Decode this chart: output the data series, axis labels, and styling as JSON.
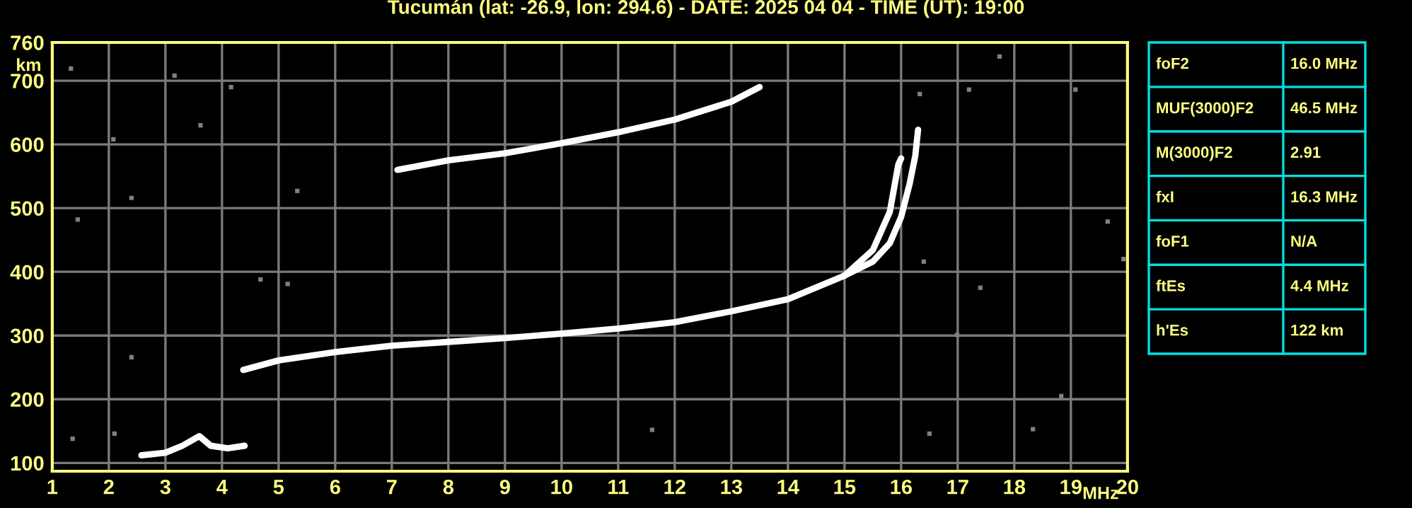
{
  "chart_data": {
    "type": "line",
    "title": "Tucumán (lat: -26.9, lon: 294.6) - DATE: 2025 04 04 - TIME (UT): 19:00",
    "xlabel": "MHz",
    "ylabel": "km",
    "xlim": [
      1,
      20
    ],
    "xticks": [
      1,
      2,
      3,
      4,
      5,
      6,
      7,
      8,
      9,
      10,
      11,
      12,
      13,
      14,
      15,
      16,
      17,
      18,
      19,
      20
    ],
    "ylim": [
      87,
      760
    ],
    "yticks": [
      100,
      200,
      300,
      400,
      500,
      600,
      700,
      760
    ],
    "grid": true,
    "legend": false,
    "marker": "none",
    "line_style": "solid",
    "series": [
      {
        "color": "#ffffff",
        "x": [
          4.375,
          5,
          6,
          7,
          8,
          9,
          10,
          11,
          12,
          13,
          14,
          15,
          15.5,
          15.8,
          15.95,
          16.0
        ],
        "values": [
          246,
          261,
          274,
          284,
          290,
          296,
          303,
          311,
          321,
          338,
          357,
          394,
          434,
          494,
          568,
          578
        ]
      },
      {
        "color": "#ffffff",
        "x": [
          15.0,
          15.5,
          15.8,
          16.0,
          16.15,
          16.25,
          16.3
        ],
        "values": [
          394,
          416,
          445,
          486,
          538,
          582,
          623
        ]
      },
      {
        "color": "#ffffff",
        "x": [
          7.1,
          8,
          9,
          10,
          11,
          12,
          13,
          13.5
        ],
        "values": [
          560,
          575,
          586,
          602,
          619,
          639,
          667,
          690
        ]
      },
      {
        "color": "#ffffff",
        "x": [
          2.575,
          3,
          3.3,
          3.6,
          3.8,
          4.1,
          4.4
        ],
        "values": [
          112,
          116,
          127,
          142,
          127,
          123,
          127
        ]
      },
      {
        "type": "scatter",
        "marker": "square",
        "color": "#808080",
        "x": [
          3.16,
          4.16,
          1.33,
          2.08,
          3.62,
          1.45,
          5.33,
          2.4,
          2.1,
          11.6,
          5.16,
          4.68,
          1.36,
          2.4,
          19.93,
          19.08,
          17.74,
          16.99,
          18.33,
          16.5,
          17.2,
          16.33,
          19.65,
          17.4,
          18.83,
          16.4
        ],
        "values": [
          708,
          690,
          719,
          608,
          630,
          482,
          527,
          516,
          146,
          152,
          381,
          388,
          138,
          266,
          420,
          686,
          738,
          301,
          153,
          146,
          686,
          679,
          479,
          375,
          205,
          416
        ]
      }
    ],
    "annotations": [
      "foF2",
      "16.0 MHz",
      "MUF(3000)F2",
      "46.5 MHz",
      "M(3000)F2",
      "2.91",
      "fxI",
      "16.3 MHz",
      "foF1",
      "N/A",
      "ftEs",
      "4.4 MHz",
      "h'Es",
      "122 km"
    ]
  }
}
